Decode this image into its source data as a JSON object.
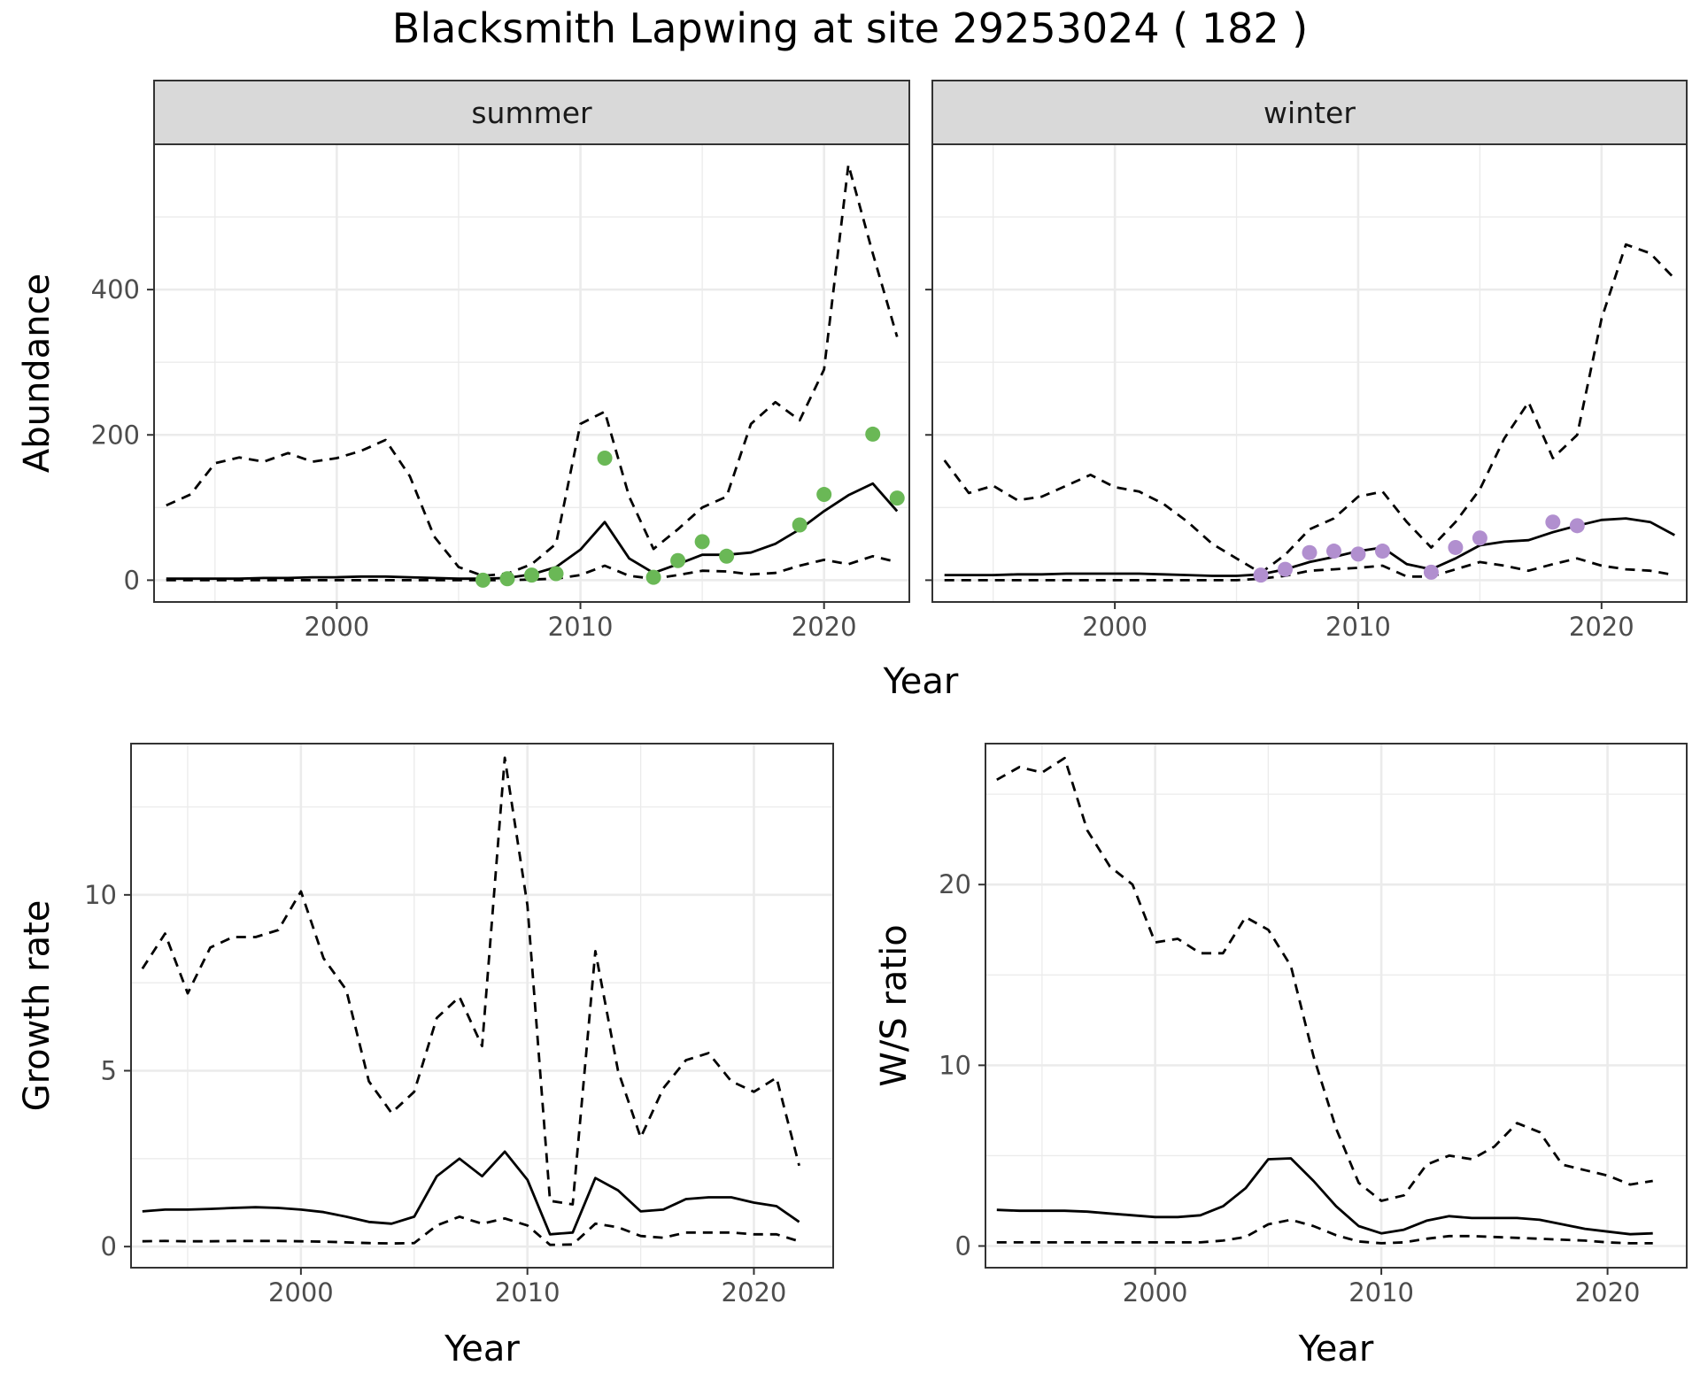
{
  "figure": {
    "title": "Blacksmith Lapwing at site 29253024 ( 182 )"
  },
  "chart_data": [
    {
      "id": "summer",
      "type": "line",
      "strip_label": "summer",
      "xlabel": "",
      "ylabel": "Abundance",
      "xlim": [
        1992.5,
        2023.5
      ],
      "ylim": [
        -30,
        600
      ],
      "xticks": [
        2000,
        2010,
        2020
      ],
      "yticks": [
        0,
        200,
        400
      ],
      "grid": true,
      "lines": [
        {
          "style": "solid",
          "x": [
            1993,
            1994,
            1995,
            1996,
            1997,
            1998,
            1999,
            2000,
            2001,
            2002,
            2003,
            2004,
            2005,
            2006,
            2007,
            2008,
            2009,
            2010,
            2011,
            2012,
            2013,
            2014,
            2015,
            2016,
            2017,
            2018,
            2019,
            2020,
            2021,
            2022,
            2023
          ],
          "y": [
            2,
            2,
            2,
            2,
            3,
            3,
            4,
            4,
            5,
            5,
            4,
            3,
            2,
            2,
            3,
            8,
            18,
            42,
            80,
            30,
            10,
            22,
            35,
            35,
            38,
            50,
            70,
            95,
            117,
            133,
            95
          ]
        },
        {
          "style": "dashed",
          "x": [
            1993,
            1994,
            1995,
            1996,
            1997,
            1998,
            1999,
            2000,
            2001,
            2002,
            2003,
            2004,
            2005,
            2006,
            2007,
            2008,
            2009,
            2010,
            2011,
            2012,
            2013,
            2014,
            2015,
            2016,
            2017,
            2018,
            2019,
            2020,
            2021,
            2022,
            2023
          ],
          "y": [
            103,
            118,
            161,
            169,
            163,
            175,
            163,
            168,
            178,
            193,
            143,
            60,
            18,
            6,
            9,
            22,
            50,
            215,
            232,
            115,
            43,
            70,
            100,
            115,
            215,
            245,
            220,
            290,
            572,
            450,
            335
          ]
        },
        {
          "style": "dashed",
          "x": [
            1993,
            1994,
            1995,
            1996,
            1997,
            1998,
            1999,
            2000,
            2001,
            2002,
            2003,
            2004,
            2005,
            2006,
            2007,
            2008,
            2009,
            2010,
            2011,
            2012,
            2013,
            2014,
            2015,
            2016,
            2017,
            2018,
            2019,
            2020,
            2021,
            2022,
            2023
          ],
          "y": [
            0,
            0,
            0,
            0,
            0,
            0,
            0,
            0,
            0,
            0,
            0,
            0,
            0,
            0,
            0,
            1,
            2,
            7,
            20,
            6,
            2,
            7,
            13,
            12,
            8,
            10,
            20,
            28,
            22,
            33,
            25
          ]
        }
      ],
      "points": {
        "color": "#6ab856",
        "x": [
          2006,
          2007,
          2008,
          2009,
          2011,
          2013,
          2014,
          2015,
          2016,
          2019,
          2020,
          2022,
          2023
        ],
        "y": [
          0,
          2,
          7,
          9,
          168,
          4,
          27,
          53,
          33,
          76,
          118,
          201,
          113
        ]
      }
    },
    {
      "id": "winter",
      "type": "line",
      "strip_label": "winter",
      "xlabel": "",
      "ylabel": "",
      "xlim": [
        1992.5,
        2023.5
      ],
      "ylim": [
        -30,
        600
      ],
      "xticks": [
        2000,
        2010,
        2020
      ],
      "yticks": [
        0,
        200,
        400
      ],
      "grid": true,
      "lines": [
        {
          "style": "solid",
          "x": [
            1993,
            1994,
            1995,
            1996,
            1997,
            1998,
            1999,
            2000,
            2001,
            2002,
            2003,
            2004,
            2005,
            2006,
            2007,
            2008,
            2009,
            2010,
            2011,
            2012,
            2013,
            2014,
            2015,
            2016,
            2017,
            2018,
            2019,
            2020,
            2021,
            2022,
            2023
          ],
          "y": [
            7,
            7,
            7,
            8,
            8,
            9,
            9,
            9,
            9,
            8,
            7,
            6,
            6,
            8,
            15,
            25,
            32,
            40,
            45,
            22,
            15,
            30,
            48,
            53,
            55,
            66,
            75,
            83,
            85,
            80,
            62
          ]
        },
        {
          "style": "dashed",
          "x": [
            1993,
            1994,
            1995,
            1996,
            1997,
            1998,
            1999,
            2000,
            2001,
            2002,
            2003,
            2004,
            2005,
            2006,
            2007,
            2008,
            2009,
            2010,
            2011,
            2012,
            2013,
            2014,
            2015,
            2016,
            2017,
            2018,
            2019,
            2020,
            2021,
            2022,
            2023
          ],
          "y": [
            165,
            120,
            130,
            110,
            115,
            130,
            145,
            128,
            122,
            105,
            80,
            50,
            30,
            10,
            35,
            70,
            85,
            115,
            122,
            80,
            45,
            80,
            125,
            195,
            245,
            168,
            200,
            360,
            462,
            450,
            415
          ]
        },
        {
          "style": "dashed",
          "x": [
            1993,
            1994,
            1995,
            1996,
            1997,
            1998,
            1999,
            2000,
            2001,
            2002,
            2003,
            2004,
            2005,
            2006,
            2007,
            2008,
            2009,
            2010,
            2011,
            2012,
            2013,
            2014,
            2015,
            2016,
            2017,
            2018,
            2019,
            2020,
            2021,
            2022,
            2023
          ],
          "y": [
            0,
            0,
            0,
            0,
            0,
            0,
            0,
            0,
            0,
            0,
            0,
            0,
            0,
            2,
            6,
            13,
            15,
            17,
            20,
            5,
            5,
            15,
            25,
            20,
            13,
            22,
            30,
            20,
            15,
            13,
            7
          ]
        }
      ],
      "points": {
        "color": "#b18fcf",
        "x": [
          2006,
          2007,
          2008,
          2009,
          2010,
          2011,
          2013,
          2014,
          2015,
          2018,
          2019
        ],
        "y": [
          7,
          15,
          38,
          40,
          36,
          40,
          11,
          45,
          58,
          80,
          75
        ]
      }
    },
    {
      "id": "growth",
      "type": "line",
      "xlabel": "Year",
      "ylabel": "Growth rate",
      "xlim": [
        1992.5,
        2023.5
      ],
      "ylim": [
        -0.6,
        14.3
      ],
      "xticks": [
        2000,
        2010,
        2020
      ],
      "yticks": [
        0,
        5,
        10
      ],
      "grid": true,
      "lines": [
        {
          "style": "solid",
          "x": [
            1993,
            1994,
            1995,
            1996,
            1997,
            1998,
            1999,
            2000,
            2001,
            2002,
            2003,
            2004,
            2005,
            2006,
            2007,
            2008,
            2009,
            2010,
            2011,
            2012,
            2013,
            2014,
            2015,
            2016,
            2017,
            2018,
            2019,
            2020,
            2021,
            2022
          ],
          "y": [
            1.0,
            1.05,
            1.05,
            1.07,
            1.1,
            1.12,
            1.1,
            1.05,
            0.98,
            0.85,
            0.7,
            0.65,
            0.85,
            2.0,
            2.5,
            2.0,
            2.7,
            1.9,
            0.35,
            0.4,
            1.95,
            1.6,
            1.0,
            1.05,
            1.35,
            1.4,
            1.4,
            1.25,
            1.15,
            0.7
          ]
        },
        {
          "style": "dashed",
          "x": [
            1993,
            1994,
            1995,
            1996,
            1997,
            1998,
            1999,
            2000,
            2001,
            2002,
            2003,
            2004,
            2005,
            2006,
            2007,
            2008,
            2009,
            2010,
            2011,
            2012,
            2013,
            2014,
            2015,
            2016,
            2017,
            2018,
            2019,
            2020,
            2021,
            2022
          ],
          "y": [
            7.9,
            8.9,
            7.2,
            8.5,
            8.8,
            8.8,
            9.0,
            10.1,
            8.2,
            7.3,
            4.7,
            3.8,
            4.4,
            6.5,
            7.1,
            5.7,
            13.9,
            9.7,
            1.3,
            1.2,
            8.4,
            5.0,
            3.1,
            4.5,
            5.3,
            5.5,
            4.7,
            4.4,
            4.8,
            2.3
          ]
        },
        {
          "style": "dashed",
          "x": [
            1993,
            1994,
            1995,
            1996,
            1997,
            1998,
            1999,
            2000,
            2001,
            2002,
            2003,
            2004,
            2005,
            2006,
            2007,
            2008,
            2009,
            2010,
            2011,
            2012,
            2013,
            2014,
            2015,
            2016,
            2017,
            2018,
            2019,
            2020,
            2021,
            2022
          ],
          "y": [
            0.15,
            0.16,
            0.15,
            0.15,
            0.16,
            0.16,
            0.16,
            0.15,
            0.14,
            0.12,
            0.1,
            0.09,
            0.1,
            0.6,
            0.85,
            0.65,
            0.8,
            0.6,
            0.05,
            0.06,
            0.65,
            0.55,
            0.3,
            0.25,
            0.4,
            0.4,
            0.4,
            0.35,
            0.35,
            0.15
          ]
        }
      ]
    },
    {
      "id": "ws",
      "type": "line",
      "xlabel": "Year",
      "ylabel": "W/S ratio",
      "xlim": [
        1992.5,
        2023.5
      ],
      "ylim": [
        -1.2,
        27.8
      ],
      "xticks": [
        2000,
        2010,
        2020
      ],
      "yticks": [
        0,
        10,
        20
      ],
      "grid": true,
      "lines": [
        {
          "style": "solid",
          "x": [
            1993,
            1994,
            1995,
            1996,
            1997,
            1998,
            1999,
            2000,
            2001,
            2002,
            2003,
            2004,
            2005,
            2006,
            2007,
            2008,
            2009,
            2010,
            2011,
            2012,
            2013,
            2014,
            2015,
            2016,
            2017,
            2018,
            2019,
            2020,
            2021,
            2022
          ],
          "y": [
            2.0,
            1.95,
            1.95,
            1.95,
            1.9,
            1.8,
            1.7,
            1.6,
            1.6,
            1.7,
            2.2,
            3.2,
            4.8,
            4.85,
            3.6,
            2.2,
            1.1,
            0.7,
            0.9,
            1.4,
            1.65,
            1.55,
            1.55,
            1.55,
            1.45,
            1.2,
            0.95,
            0.8,
            0.65,
            0.7
          ]
        },
        {
          "style": "dashed",
          "x": [
            1993,
            1994,
            1995,
            1996,
            1997,
            1998,
            1999,
            2000,
            2001,
            2002,
            2003,
            2004,
            2005,
            2006,
            2007,
            2008,
            2009,
            2010,
            2011,
            2012,
            2013,
            2014,
            2015,
            2016,
            2017,
            2018,
            2019,
            2020,
            2021,
            2022
          ],
          "y": [
            25.8,
            26.5,
            26.2,
            27.0,
            23.0,
            21.0,
            20.0,
            16.8,
            17.0,
            16.2,
            16.2,
            18.2,
            17.5,
            15.5,
            10.5,
            6.5,
            3.5,
            2.5,
            2.8,
            4.5,
            5.0,
            4.8,
            5.5,
            6.8,
            6.3,
            4.5,
            4.2,
            3.9,
            3.4,
            3.6
          ]
        },
        {
          "style": "dashed",
          "x": [
            1993,
            1994,
            1995,
            1996,
            1997,
            1998,
            1999,
            2000,
            2001,
            2002,
            2003,
            2004,
            2005,
            2006,
            2007,
            2008,
            2009,
            2010,
            2011,
            2012,
            2013,
            2014,
            2015,
            2016,
            2017,
            2018,
            2019,
            2020,
            2021,
            2022
          ],
          "y": [
            0.2,
            0.2,
            0.2,
            0.2,
            0.2,
            0.2,
            0.2,
            0.2,
            0.2,
            0.2,
            0.3,
            0.5,
            1.2,
            1.45,
            1.1,
            0.6,
            0.25,
            0.15,
            0.2,
            0.4,
            0.55,
            0.55,
            0.5,
            0.45,
            0.4,
            0.35,
            0.3,
            0.2,
            0.15,
            0.15
          ]
        }
      ]
    }
  ],
  "shared_xlabel": "Year"
}
